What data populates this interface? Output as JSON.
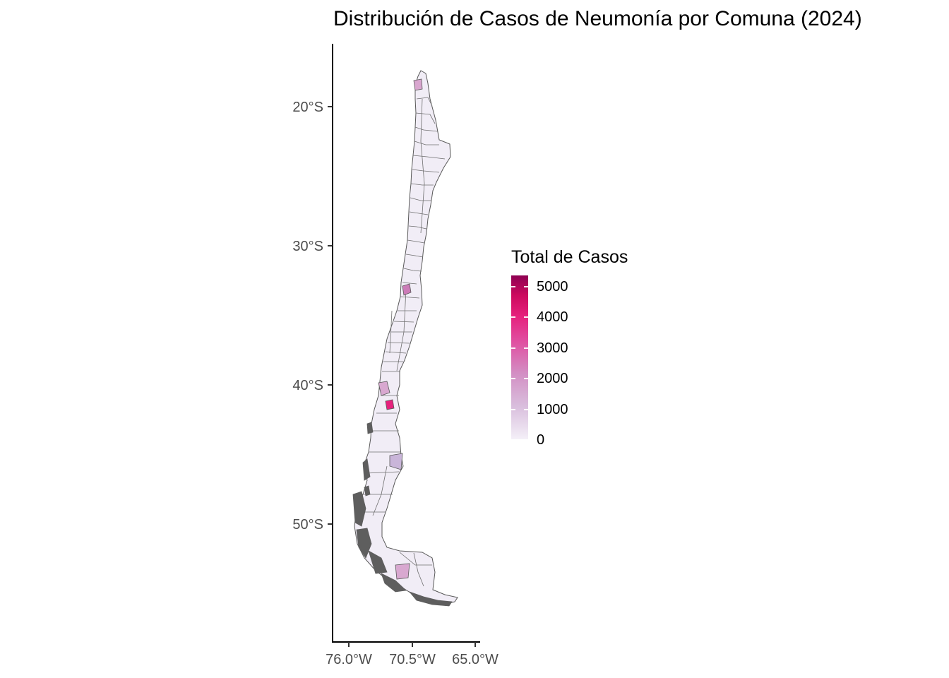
{
  "title": "Distribución de Casos de Neumonía por Comuna (2024)",
  "legend": {
    "title": "Total de Casos",
    "labels": [
      "5000",
      "4000",
      "3000",
      "2000",
      "1000",
      "0"
    ],
    "range": [
      0,
      5500
    ],
    "colors": {
      "low": "#f4f0f8",
      "mid": "#e04ea0",
      "high": "#8e0152"
    }
  },
  "axes": {
    "y_ticks": [
      "20°S",
      "30°S",
      "40°S",
      "50°S"
    ],
    "x_ticks": [
      "76.0°W",
      "70.5°W",
      "65.0°W"
    ]
  },
  "map": {
    "region": "Chile",
    "border_color": "#595959",
    "default_fill": "#f1edf6",
    "highlighted_comunas_shade": [
      "#d9a6cf",
      "#cc7bb8",
      "#e6217d",
      "#c9b5d9",
      "#d8a8d0"
    ]
  }
}
